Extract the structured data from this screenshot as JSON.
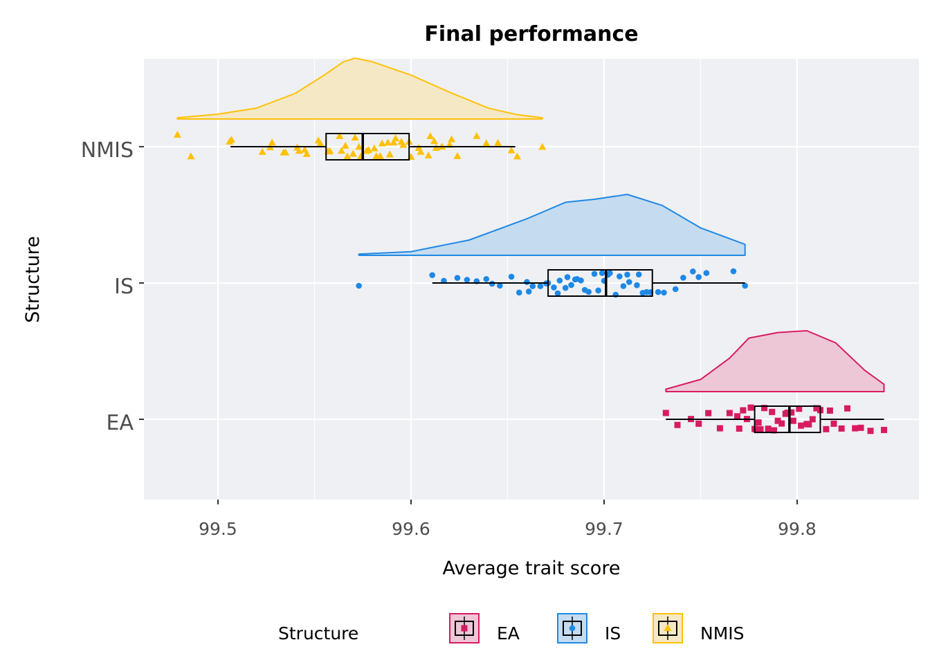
{
  "chart_data": {
    "type": "raincloud",
    "title": "Final performance",
    "xlabel": "Average trait score",
    "ylabel": "Structure",
    "xlim": [
      99.462,
      99.863
    ],
    "x_ticks": [
      "99.5",
      "99.6",
      "99.7",
      "99.8"
    ],
    "x_tick_values": [
      99.5,
      99.6,
      99.7,
      99.8
    ],
    "grid": true,
    "legend": {
      "title": "Structure",
      "position": "bottom",
      "entries": [
        "EA",
        "IS",
        "NMIS"
      ]
    },
    "categories": [
      "NMIS",
      "IS",
      "EA"
    ],
    "series": [
      {
        "name": "NMIS",
        "color": "#FFC107",
        "fill": "#F5E8C4",
        "marker": "triangle",
        "box": {
          "whisker_low": 99.5065,
          "q1": 99.556,
          "median": 99.575,
          "q3": 99.599,
          "whisker_high": 99.654
        },
        "density": [
          [
            99.479,
            0.02
          ],
          [
            99.5,
            0.08
          ],
          [
            99.52,
            0.18
          ],
          [
            99.54,
            0.42
          ],
          [
            99.555,
            0.72
          ],
          [
            99.565,
            0.94
          ],
          [
            99.571,
            1.0
          ],
          [
            99.58,
            0.94
          ],
          [
            99.6,
            0.72
          ],
          [
            99.62,
            0.44
          ],
          [
            99.64,
            0.18
          ],
          [
            99.655,
            0.07
          ],
          [
            99.668,
            0.02
          ]
        ],
        "points": [
          99.479,
          99.486,
          99.506,
          99.507,
          99.523,
          99.527,
          99.528,
          99.534,
          99.535,
          99.541,
          99.542,
          99.545,
          99.546,
          99.552,
          99.553,
          99.557,
          99.558,
          99.563,
          99.564,
          99.566,
          99.567,
          99.57,
          99.571,
          99.573,
          99.574,
          99.577,
          99.578,
          99.581,
          99.582,
          99.584,
          99.585,
          99.588,
          99.589,
          99.591,
          99.592,
          99.595,
          99.596,
          99.599,
          99.6,
          99.604,
          99.605,
          99.609,
          99.61,
          99.612,
          99.613,
          99.616,
          99.62,
          99.621,
          99.624,
          99.634,
          99.639,
          99.645,
          99.652,
          99.655,
          99.668
        ]
      },
      {
        "name": "IS",
        "color": "#1E88E5",
        "fill": "#C5DCF0",
        "marker": "circle",
        "box": {
          "whisker_low": 99.611,
          "q1": 99.671,
          "median": 99.701,
          "q3": 99.725,
          "whisker_high": 99.773
        },
        "outliers": [
          99.573
        ],
        "density": [
          [
            99.573,
            0.02
          ],
          [
            99.6,
            0.06
          ],
          [
            99.63,
            0.25
          ],
          [
            99.66,
            0.6
          ],
          [
            99.68,
            0.87
          ],
          [
            99.695,
            0.92
          ],
          [
            99.712,
            1.0
          ],
          [
            99.73,
            0.82
          ],
          [
            99.75,
            0.45
          ],
          [
            99.773,
            0.18
          ]
        ],
        "points": [
          99.611,
          99.617,
          99.624,
          99.629,
          99.634,
          99.639,
          99.642,
          99.646,
          99.652,
          99.656,
          99.66,
          99.661,
          99.663,
          99.667,
          99.67,
          99.671,
          99.674,
          99.676,
          99.677,
          99.68,
          99.681,
          99.683,
          99.685,
          99.686,
          99.688,
          99.69,
          99.692,
          99.695,
          99.697,
          99.699,
          99.7,
          99.702,
          99.703,
          99.706,
          99.708,
          99.71,
          99.712,
          99.713,
          99.717,
          99.718,
          99.72,
          99.722,
          99.724,
          99.728,
          99.731,
          99.737,
          99.741,
          99.746,
          99.749,
          99.753,
          99.767,
          99.773
        ]
      },
      {
        "name": "EA",
        "color": "#D81B60",
        "fill": "#EDC7D6",
        "marker": "square",
        "box": {
          "whisker_low": 99.732,
          "q1": 99.778,
          "median": 99.796,
          "q3": 99.812,
          "whisker_high": 99.845
        },
        "density": [
          [
            99.732,
            0.04
          ],
          [
            99.75,
            0.2
          ],
          [
            99.765,
            0.55
          ],
          [
            99.775,
            0.88
          ],
          [
            99.79,
            0.97
          ],
          [
            99.805,
            1.0
          ],
          [
            99.82,
            0.8
          ],
          [
            99.835,
            0.35
          ],
          [
            99.845,
            0.12
          ]
        ],
        "points": [
          99.732,
          99.738,
          99.745,
          99.749,
          99.754,
          99.76,
          99.765,
          99.769,
          99.77,
          99.772,
          99.774,
          99.776,
          99.778,
          99.78,
          99.781,
          99.783,
          99.785,
          99.787,
          99.788,
          99.79,
          99.792,
          99.794,
          99.795,
          99.797,
          99.798,
          99.801,
          99.802,
          99.805,
          99.806,
          99.808,
          99.81,
          99.812,
          99.815,
          99.817,
          99.819,
          99.823,
          99.826,
          99.83,
          99.833,
          99.838,
          99.845
        ]
      }
    ]
  }
}
